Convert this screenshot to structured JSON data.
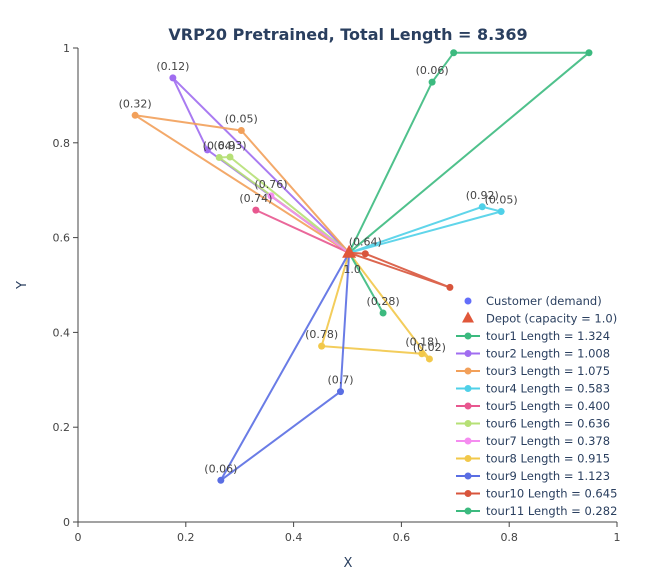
{
  "chart_data": {
    "type": "scatter",
    "title": "VRP20 Pretrained, Total Length = 8.369",
    "xlabel": "X",
    "ylabel": "Y",
    "xlim": [
      0,
      1
    ],
    "ylim": [
      0,
      1
    ],
    "xticks": [
      "0",
      "0.2",
      "0.4",
      "0.6",
      "0.8",
      "1"
    ],
    "yticks": [
      "0",
      "0.2",
      "0.4",
      "0.6",
      "0.8",
      "1"
    ],
    "grid": false,
    "legend_position": "bottom-right",
    "depot": {
      "x": 0.503,
      "y": 0.568,
      "label": "1.0",
      "legend": "Depot (capacity = 1.0)",
      "color": "#e0573a"
    },
    "customers_legend": "Customer (demand)",
    "customer_color": "#636efa",
    "tours": [
      {
        "name": "tour1 Length = 1.324",
        "color": "#3cba7f",
        "points": [
          {
            "x": 0.657,
            "y": 0.928,
            "label": "(0.06)"
          },
          {
            "x": 0.697,
            "y": 0.99,
            "label": ""
          },
          {
            "x": 0.948,
            "y": 0.99,
            "label": ""
          }
        ]
      },
      {
        "name": "tour2 Length = 1.008",
        "color": "#a06df0",
        "points": [
          {
            "x": 0.176,
            "y": 0.937,
            "label": "(0.12)"
          },
          {
            "x": 0.24,
            "y": 0.785,
            "label": ""
          }
        ]
      },
      {
        "name": "tour3 Length = 1.075",
        "color": "#f2a05a",
        "points": [
          {
            "x": 0.106,
            "y": 0.858,
            "label": "(0.32)"
          },
          {
            "x": 0.303,
            "y": 0.826,
            "label": "(0.05)"
          }
        ]
      },
      {
        "name": "tour4 Length = 0.583",
        "color": "#4fd0e8",
        "points": [
          {
            "x": 0.75,
            "y": 0.665,
            "label": "(0.92)"
          },
          {
            "x": 0.785,
            "y": 0.655,
            "label": "(0.05)"
          }
        ]
      },
      {
        "name": "tour5 Length = 0.400",
        "color": "#e8578f",
        "points": [
          {
            "x": 0.33,
            "y": 0.658,
            "label": "(0.74)"
          }
        ]
      },
      {
        "name": "tour6 Length = 0.636",
        "color": "#b6e076",
        "points": [
          {
            "x": 0.262,
            "y": 0.769,
            "label": "(0.64)"
          },
          {
            "x": 0.282,
            "y": 0.77,
            "label": "(0.93)"
          }
        ]
      },
      {
        "name": "tour7 Length = 0.378",
        "color": "#f58cf0",
        "points": [
          {
            "x": 0.358,
            "y": 0.688,
            "label": "(0.76)"
          }
        ]
      },
      {
        "name": "tour8 Length = 0.915",
        "color": "#f2c84a",
        "points": [
          {
            "x": 0.452,
            "y": 0.371,
            "label": "(0.78)"
          },
          {
            "x": 0.638,
            "y": 0.355,
            "label": "(0.18)"
          },
          {
            "x": 0.652,
            "y": 0.344,
            "label": "(0.02)"
          }
        ]
      },
      {
        "name": "tour9 Length = 1.123",
        "color": "#5a6ee3",
        "points": [
          {
            "x": 0.265,
            "y": 0.088,
            "label": "(0.06)"
          },
          {
            "x": 0.487,
            "y": 0.275,
            "label": "(0.7)"
          }
        ]
      },
      {
        "name": "tour10 Length = 0.645",
        "color": "#d8553c",
        "points": [
          {
            "x": 0.533,
            "y": 0.566,
            "label": "(0.64)"
          },
          {
            "x": 0.69,
            "y": 0.495,
            "label": ""
          }
        ]
      },
      {
        "name": "tour11 Length = 0.282",
        "color": "#3cba7f",
        "points": [
          {
            "x": 0.566,
            "y": 0.441,
            "label": "(0.28)"
          }
        ]
      }
    ]
  }
}
